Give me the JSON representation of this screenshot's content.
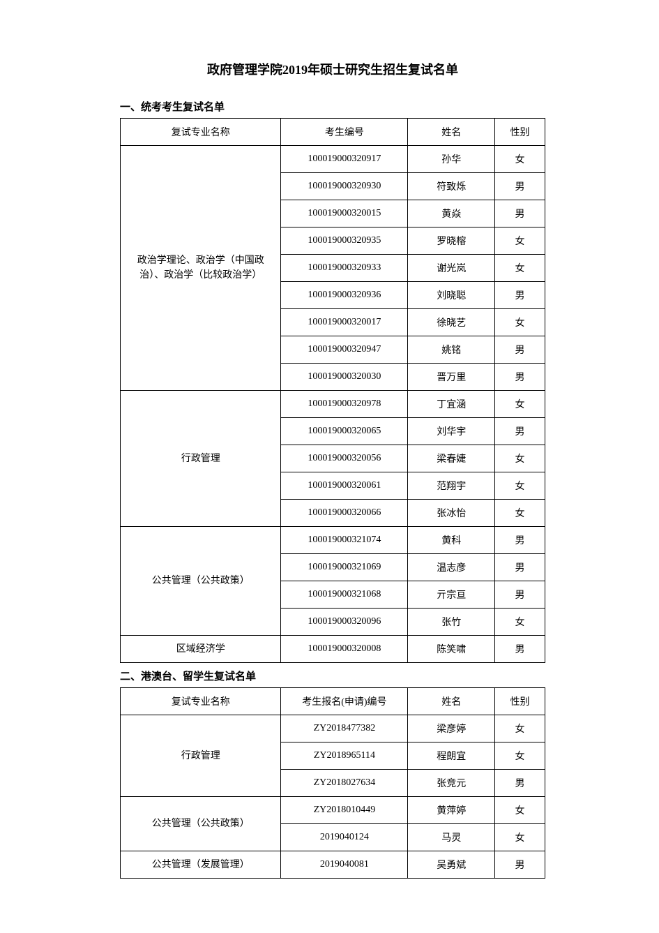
{
  "title": "政府管理学院2019年硕士研究生招生复试名单",
  "section1": {
    "heading": "一、统考考生复试名单",
    "headers": {
      "major": "复试专业名称",
      "id": "考生编号",
      "name": "姓名",
      "gender": "性别"
    },
    "groups": [
      {
        "major": "政治学理论、政治学（中国政治）、政治学（比较政治学）",
        "rows": [
          {
            "id": "100019000320917",
            "name": "孙华",
            "gender": "女"
          },
          {
            "id": "100019000320930",
            "name": "符致烁",
            "gender": "男"
          },
          {
            "id": "100019000320015",
            "name": "黄焱",
            "gender": "男"
          },
          {
            "id": "100019000320935",
            "name": "罗晓榕",
            "gender": "女"
          },
          {
            "id": "100019000320933",
            "name": "谢光岚",
            "gender": "女"
          },
          {
            "id": "100019000320936",
            "name": "刘晓聪",
            "gender": "男"
          },
          {
            "id": "100019000320017",
            "name": "徐晓艺",
            "gender": "女"
          },
          {
            "id": "100019000320947",
            "name": "姚铭",
            "gender": "男"
          },
          {
            "id": "100019000320030",
            "name": "晋万里",
            "gender": "男"
          }
        ]
      },
      {
        "major": "行政管理",
        "rows": [
          {
            "id": "100019000320978",
            "name": "丁宜涵",
            "gender": "女"
          },
          {
            "id": "100019000320065",
            "name": "刘华宇",
            "gender": "男"
          },
          {
            "id": "100019000320056",
            "name": "梁春婕",
            "gender": "女"
          },
          {
            "id": "100019000320061",
            "name": "范翔宇",
            "gender": "女"
          },
          {
            "id": "100019000320066",
            "name": "张冰怡",
            "gender": "女"
          }
        ]
      },
      {
        "major": "公共管理（公共政策）",
        "rows": [
          {
            "id": "100019000321074",
            "name": "黄科",
            "gender": "男"
          },
          {
            "id": "100019000321069",
            "name": "温志彦",
            "gender": "男"
          },
          {
            "id": "100019000321068",
            "name": "亓宗亘",
            "gender": "男"
          },
          {
            "id": "100019000320096",
            "name": "张竹",
            "gender": "女"
          }
        ]
      },
      {
        "major": "区域经济学",
        "rows": [
          {
            "id": "100019000320008",
            "name": "陈笑啸",
            "gender": "男"
          }
        ]
      }
    ]
  },
  "section2": {
    "heading": "二、港澳台、留学生复试名单",
    "headers": {
      "major": "复试专业名称",
      "id": "考生报名(申请)编号",
      "name": "姓名",
      "gender": "性别"
    },
    "groups": [
      {
        "major": "行政管理",
        "rows": [
          {
            "id": "ZY2018477382",
            "name": "梁彦婷",
            "gender": "女"
          },
          {
            "id": "ZY2018965114",
            "name": "程朗宜",
            "gender": "女"
          },
          {
            "id": "ZY2018027634",
            "name": "张竞元",
            "gender": "男"
          }
        ]
      },
      {
        "major": "公共管理（公共政策）",
        "rows": [
          {
            "id": "ZY2018010449",
            "name": "黄萍婷",
            "gender": "女"
          },
          {
            "id": "2019040124",
            "name": "马灵",
            "gender": "女"
          }
        ]
      },
      {
        "major": "公共管理（发展管理）",
        "rows": [
          {
            "id": "2019040081",
            "name": "吴勇斌",
            "gender": "男"
          }
        ]
      }
    ]
  }
}
